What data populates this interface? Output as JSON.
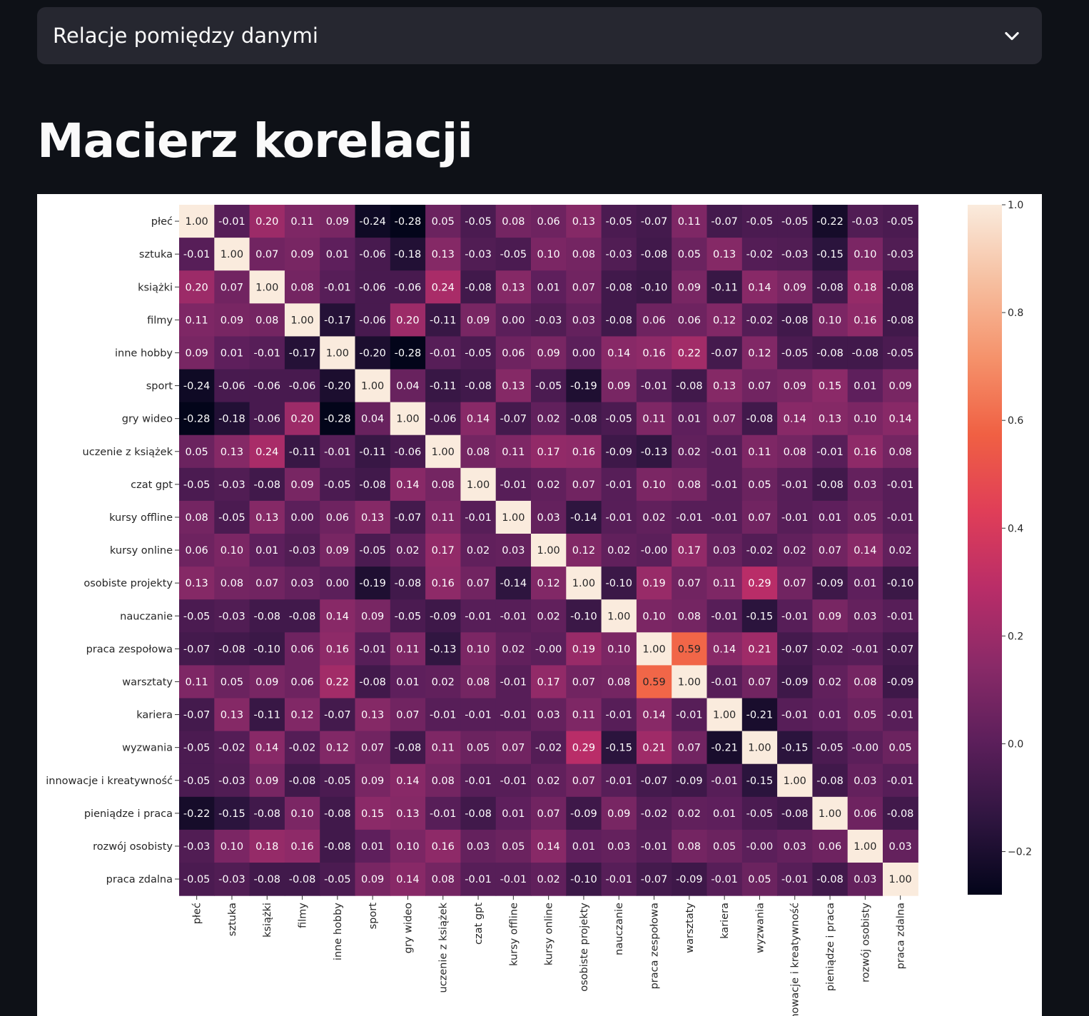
{
  "expander": {
    "label": "Relacje pomiędzy danymi",
    "icon": "chevron-down-icon"
  },
  "page": {
    "title": "Macierz korelacji"
  },
  "chart_data": {
    "type": "heatmap",
    "labels": [
      "płeć",
      "sztuka",
      "książki",
      "filmy",
      "inne hobby",
      "sport",
      "gry wideo",
      "uczenie z książek",
      "czat gpt",
      "kursy offline",
      "kursy online",
      "osobiste projekty",
      "nauczanie",
      "praca zespołowa",
      "warsztaty",
      "kariera",
      "wyzwania",
      "innowacje i kreatywność",
      "pieniądze i praca",
      "rozwój osobisty",
      "praca zdalna"
    ],
    "values": [
      [
        "1.00",
        "-0.01",
        "0.20",
        "0.11",
        "0.09",
        "-0.24",
        "-0.28",
        "0.05",
        "-0.05",
        "0.08",
        "0.06",
        "0.13",
        "-0.05",
        "-0.07",
        "0.11",
        "-0.07",
        "-0.05",
        "-0.05",
        "-0.22",
        "-0.03",
        "-0.05"
      ],
      [
        "-0.01",
        "1.00",
        "0.07",
        "0.09",
        "0.01",
        "-0.06",
        "-0.18",
        "0.13",
        "-0.03",
        "-0.05",
        "0.10",
        "0.08",
        "-0.03",
        "-0.08",
        "0.05",
        "0.13",
        "-0.02",
        "-0.03",
        "-0.15",
        "0.10",
        "-0.03"
      ],
      [
        "0.20",
        "0.07",
        "1.00",
        "0.08",
        "-0.01",
        "-0.06",
        "-0.06",
        "0.24",
        "-0.08",
        "0.13",
        "0.01",
        "0.07",
        "-0.08",
        "-0.10",
        "0.09",
        "-0.11",
        "0.14",
        "0.09",
        "-0.08",
        "0.18",
        "-0.08"
      ],
      [
        "0.11",
        "0.09",
        "0.08",
        "1.00",
        "-0.17",
        "-0.06",
        "0.20",
        "-0.11",
        "0.09",
        "0.00",
        "-0.03",
        "0.03",
        "-0.08",
        "0.06",
        "0.06",
        "0.12",
        "-0.02",
        "-0.08",
        "0.10",
        "0.16",
        "-0.08"
      ],
      [
        "0.09",
        "0.01",
        "-0.01",
        "-0.17",
        "1.00",
        "-0.20",
        "-0.28",
        "-0.01",
        "-0.05",
        "0.06",
        "0.09",
        "0.00",
        "0.14",
        "0.16",
        "0.22",
        "-0.07",
        "0.12",
        "-0.05",
        "-0.08",
        "-0.08",
        "-0.05"
      ],
      [
        "-0.24",
        "-0.06",
        "-0.06",
        "-0.06",
        "-0.20",
        "1.00",
        "0.04",
        "-0.11",
        "-0.08",
        "0.13",
        "-0.05",
        "-0.19",
        "0.09",
        "-0.01",
        "-0.08",
        "0.13",
        "0.07",
        "0.09",
        "0.15",
        "0.01",
        "0.09"
      ],
      [
        "-0.28",
        "-0.18",
        "-0.06",
        "0.20",
        "-0.28",
        "0.04",
        "1.00",
        "-0.06",
        "0.14",
        "-0.07",
        "0.02",
        "-0.08",
        "-0.05",
        "0.11",
        "0.01",
        "0.07",
        "-0.08",
        "0.14",
        "0.13",
        "0.10",
        "0.14"
      ],
      [
        "0.05",
        "0.13",
        "0.24",
        "-0.11",
        "-0.01",
        "-0.11",
        "-0.06",
        "1.00",
        "0.08",
        "0.11",
        "0.17",
        "0.16",
        "-0.09",
        "-0.13",
        "0.02",
        "-0.01",
        "0.11",
        "0.08",
        "-0.01",
        "0.16",
        "0.08"
      ],
      [
        "-0.05",
        "-0.03",
        "-0.08",
        "0.09",
        "-0.05",
        "-0.08",
        "0.14",
        "0.08",
        "1.00",
        "-0.01",
        "0.02",
        "0.07",
        "-0.01",
        "0.10",
        "0.08",
        "-0.01",
        "0.05",
        "-0.01",
        "-0.08",
        "0.03",
        "-0.01"
      ],
      [
        "0.08",
        "-0.05",
        "0.13",
        "0.00",
        "0.06",
        "0.13",
        "-0.07",
        "0.11",
        "-0.01",
        "1.00",
        "0.03",
        "-0.14",
        "-0.01",
        "0.02",
        "-0.01",
        "-0.01",
        "0.07",
        "-0.01",
        "0.01",
        "0.05",
        "-0.01"
      ],
      [
        "0.06",
        "0.10",
        "0.01",
        "-0.03",
        "0.09",
        "-0.05",
        "0.02",
        "0.17",
        "0.02",
        "0.03",
        "1.00",
        "0.12",
        "0.02",
        "-0.00",
        "0.17",
        "0.03",
        "-0.02",
        "0.02",
        "0.07",
        "0.14",
        "0.02"
      ],
      [
        "0.13",
        "0.08",
        "0.07",
        "0.03",
        "0.00",
        "-0.19",
        "-0.08",
        "0.16",
        "0.07",
        "-0.14",
        "0.12",
        "1.00",
        "-0.10",
        "0.19",
        "0.07",
        "0.11",
        "0.29",
        "0.07",
        "-0.09",
        "0.01",
        "-0.10"
      ],
      [
        "-0.05",
        "-0.03",
        "-0.08",
        "-0.08",
        "0.14",
        "0.09",
        "-0.05",
        "-0.09",
        "-0.01",
        "-0.01",
        "0.02",
        "-0.10",
        "1.00",
        "0.10",
        "0.08",
        "-0.01",
        "-0.15",
        "-0.01",
        "0.09",
        "0.03",
        "-0.01"
      ],
      [
        "-0.07",
        "-0.08",
        "-0.10",
        "0.06",
        "0.16",
        "-0.01",
        "0.11",
        "-0.13",
        "0.10",
        "0.02",
        "-0.00",
        "0.19",
        "0.10",
        "1.00",
        "0.59",
        "0.14",
        "0.21",
        "-0.07",
        "-0.02",
        "-0.01",
        "-0.07"
      ],
      [
        "0.11",
        "0.05",
        "0.09",
        "0.06",
        "0.22",
        "-0.08",
        "0.01",
        "0.02",
        "0.08",
        "-0.01",
        "0.17",
        "0.07",
        "0.08",
        "0.59",
        "1.00",
        "-0.01",
        "0.07",
        "-0.09",
        "0.02",
        "0.08",
        "-0.09"
      ],
      [
        "-0.07",
        "0.13",
        "-0.11",
        "0.12",
        "-0.07",
        "0.13",
        "0.07",
        "-0.01",
        "-0.01",
        "-0.01",
        "0.03",
        "0.11",
        "-0.01",
        "0.14",
        "-0.01",
        "1.00",
        "-0.21",
        "-0.01",
        "0.01",
        "0.05",
        "-0.01"
      ],
      [
        "-0.05",
        "-0.02",
        "0.14",
        "-0.02",
        "0.12",
        "0.07",
        "-0.08",
        "0.11",
        "0.05",
        "0.07",
        "-0.02",
        "0.29",
        "-0.15",
        "0.21",
        "0.07",
        "-0.21",
        "1.00",
        "-0.15",
        "-0.05",
        "-0.00",
        "0.05"
      ],
      [
        "-0.05",
        "-0.03",
        "0.09",
        "-0.08",
        "-0.05",
        "0.09",
        "0.14",
        "0.08",
        "-0.01",
        "-0.01",
        "0.02",
        "0.07",
        "-0.01",
        "-0.07",
        "-0.09",
        "-0.01",
        "-0.15",
        "1.00",
        "-0.08",
        "0.03",
        "-0.01"
      ],
      [
        "-0.22",
        "-0.15",
        "-0.08",
        "0.10",
        "-0.08",
        "0.15",
        "0.13",
        "-0.01",
        "-0.08",
        "0.01",
        "0.07",
        "-0.09",
        "0.09",
        "-0.02",
        "0.02",
        "0.01",
        "-0.05",
        "-0.08",
        "1.00",
        "0.06",
        "-0.08"
      ],
      [
        "-0.03",
        "0.10",
        "0.18",
        "0.16",
        "-0.08",
        "0.01",
        "0.10",
        "0.16",
        "0.03",
        "0.05",
        "0.14",
        "0.01",
        "0.03",
        "-0.01",
        "0.08",
        "0.05",
        "-0.00",
        "0.03",
        "0.06",
        "1.00",
        "0.03"
      ],
      [
        "-0.05",
        "-0.03",
        "-0.08",
        "-0.08",
        "-0.05",
        "0.09",
        "0.14",
        "0.08",
        "-0.01",
        "-0.01",
        "0.02",
        "-0.10",
        "-0.01",
        "-0.07",
        "-0.09",
        "-0.01",
        "0.05",
        "-0.01",
        "-0.08",
        "0.03",
        "1.00"
      ]
    ],
    "colorbar": {
      "range": [
        -0.28,
        1.0
      ],
      "ticks": [
        1.0,
        0.8,
        0.6,
        0.4,
        0.2,
        0.0,
        -0.2
      ],
      "tick_labels": [
        "1.0",
        "0.8",
        "0.6",
        "0.4",
        "0.2",
        "0.0",
        "−0.2"
      ]
    },
    "colormap_stops": [
      "#03051a",
      "#2f1540",
      "#5c1f5b",
      "#8a2a68",
      "#b92d68",
      "#e03e58",
      "#f06043",
      "#f5926b",
      "#f6bfa0",
      "#faebdd"
    ],
    "annotations": true,
    "grid": false
  }
}
